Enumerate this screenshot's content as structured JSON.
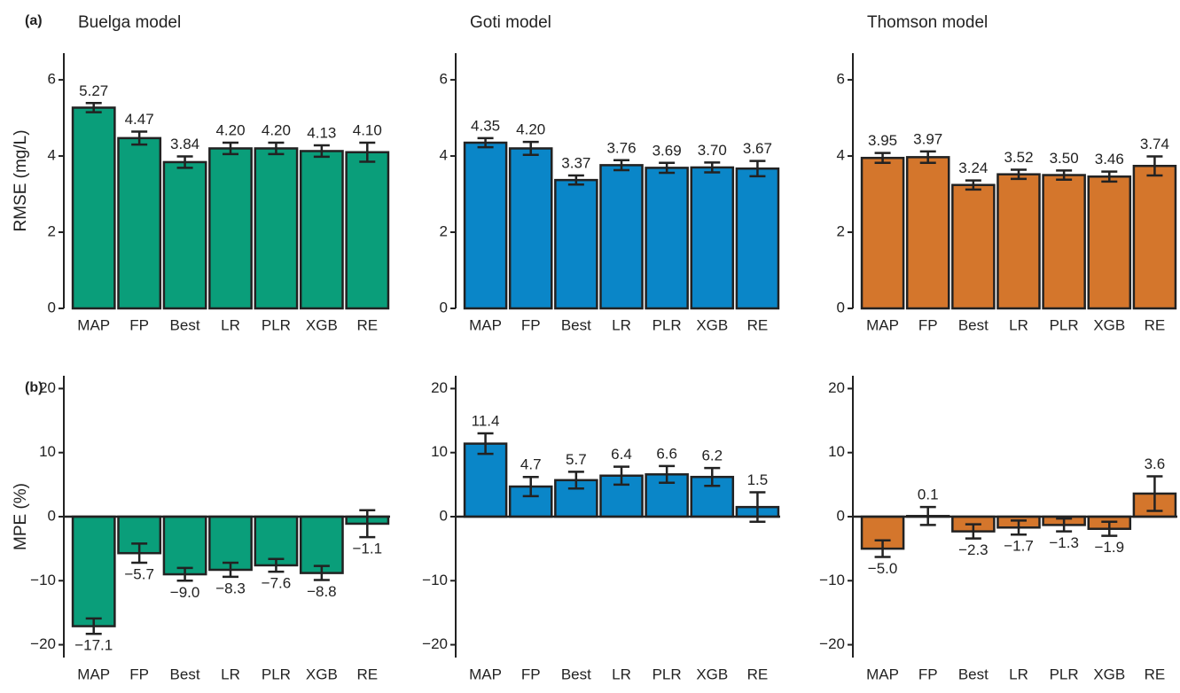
{
  "chart_data": [
    {
      "type": "bar",
      "panel_label": "(a)",
      "title": "Buelga model",
      "ylabel": "RMSE (mg/L)",
      "color": "#0a9e7a",
      "categories": [
        "MAP",
        "FP",
        "Best",
        "LR",
        "PLR",
        "XGB",
        "RE"
      ],
      "values": [
        5.27,
        4.47,
        3.84,
        4.2,
        4.2,
        4.13,
        4.1
      ],
      "value_labels": [
        "5.27",
        "4.47",
        "3.84",
        "4.20",
        "4.20",
        "4.13",
        "4.10"
      ],
      "errors": [
        0.12,
        0.17,
        0.15,
        0.15,
        0.15,
        0.15,
        0.25
      ],
      "ylim": [
        0,
        6.7
      ],
      "yticks": [
        0,
        2,
        4,
        6
      ]
    },
    {
      "type": "bar",
      "title": "Goti model",
      "color": "#0a86c8",
      "categories": [
        "MAP",
        "FP",
        "Best",
        "LR",
        "PLR",
        "XGB",
        "RE"
      ],
      "values": [
        4.35,
        4.2,
        3.37,
        3.76,
        3.69,
        3.7,
        3.67
      ],
      "value_labels": [
        "4.35",
        "4.20",
        "3.37",
        "3.76",
        "3.69",
        "3.70",
        "3.67"
      ],
      "errors": [
        0.12,
        0.17,
        0.12,
        0.13,
        0.13,
        0.13,
        0.2
      ],
      "ylim": [
        0,
        6.7
      ],
      "yticks": [
        0,
        2,
        4,
        6
      ]
    },
    {
      "type": "bar",
      "title": "Thomson model",
      "color": "#d4762c",
      "categories": [
        "MAP",
        "FP",
        "Best",
        "LR",
        "PLR",
        "XGB",
        "RE"
      ],
      "values": [
        3.95,
        3.97,
        3.24,
        3.52,
        3.5,
        3.46,
        3.74
      ],
      "value_labels": [
        "3.95",
        "3.97",
        "3.24",
        "3.52",
        "3.50",
        "3.46",
        "3.74"
      ],
      "errors": [
        0.13,
        0.15,
        0.12,
        0.12,
        0.12,
        0.13,
        0.25
      ],
      "ylim": [
        0,
        6.7
      ],
      "yticks": [
        0,
        2,
        4,
        6
      ]
    },
    {
      "type": "bar",
      "panel_label": "(b)",
      "ylabel": "MPE (%)",
      "color": "#0a9e7a",
      "categories": [
        "MAP",
        "FP",
        "Best",
        "LR",
        "PLR",
        "XGB",
        "RE"
      ],
      "values": [
        -17.1,
        -5.7,
        -9.0,
        -8.3,
        -7.6,
        -8.8,
        -1.1
      ],
      "value_labels": [
        "−17.1",
        "−5.7",
        "−9.0",
        "−8.3",
        "−7.6",
        "−8.8",
        "−1.1"
      ],
      "errors": [
        1.2,
        1.5,
        1.0,
        1.1,
        1.0,
        1.1,
        2.1
      ],
      "ylim": [
        -22,
        22
      ],
      "yticks": [
        {
          "value": -20,
          "label": "−20"
        },
        {
          "value": -10,
          "label": "−10"
        },
        0,
        10,
        20
      ]
    },
    {
      "type": "bar",
      "color": "#0a86c8",
      "categories": [
        "MAP",
        "FP",
        "Best",
        "LR",
        "PLR",
        "XGB",
        "RE"
      ],
      "values": [
        11.4,
        4.7,
        5.7,
        6.4,
        6.6,
        6.2,
        1.5
      ],
      "value_labels": [
        "11.4",
        "4.7",
        "5.7",
        "6.4",
        "6.6",
        "6.2",
        "1.5"
      ],
      "errors": [
        1.6,
        1.5,
        1.3,
        1.4,
        1.3,
        1.4,
        2.3
      ],
      "ylim": [
        -22,
        22
      ],
      "yticks": [
        {
          "value": -20,
          "label": "−20"
        },
        {
          "value": -10,
          "label": "−10"
        },
        0,
        10,
        20
      ]
    },
    {
      "type": "bar",
      "color": "#d4762c",
      "categories": [
        "MAP",
        "FP",
        "Best",
        "LR",
        "PLR",
        "XGB",
        "RE"
      ],
      "values": [
        -5.0,
        0.1,
        -2.3,
        -1.7,
        -1.3,
        -1.9,
        3.6
      ],
      "value_labels": [
        "−5.0",
        "0.1",
        "−2.3",
        "−1.7",
        "−1.3",
        "−1.9",
        "3.6"
      ],
      "errors": [
        1.3,
        1.4,
        1.1,
        1.1,
        1.0,
        1.1,
        2.7
      ],
      "ylim": [
        -22,
        22
      ],
      "yticks": [
        {
          "value": -20,
          "label": "−20"
        },
        {
          "value": -10,
          "label": "−10"
        },
        0,
        10,
        20
      ]
    }
  ]
}
